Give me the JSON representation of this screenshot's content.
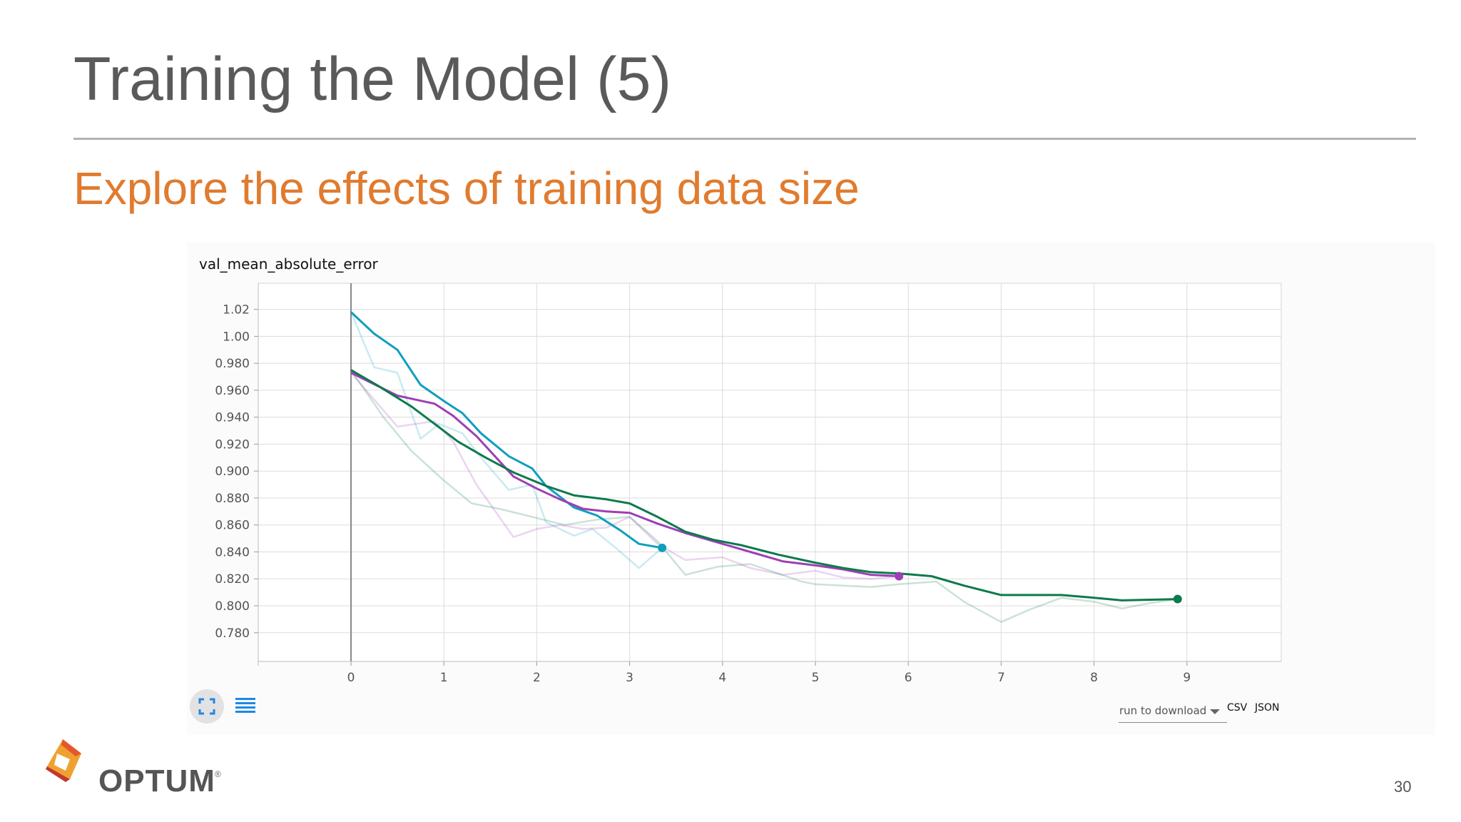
{
  "slide": {
    "title": "Training the Model (5)",
    "subtitle": "Explore the effects of training data size",
    "page_number": "30",
    "brand": "OPTUM",
    "registered_mark": "®"
  },
  "colors": {
    "title": "#5a5a5a",
    "subtitle": "#e07b2f",
    "rule": "#b3b3b3"
  },
  "controls": {
    "expand_icon": "fit-to-screen-icon",
    "lines_icon": "toggle-lines-icon",
    "run_select_label": "run to download",
    "csv_label": "CSV",
    "json_label": "JSON"
  },
  "chart_data": {
    "type": "line",
    "title": "val_mean_absolute_error",
    "xlabel": "",
    "ylabel": "",
    "xlim": [
      -1,
      10
    ],
    "ylim": [
      0.76,
      1.04
    ],
    "grid": true,
    "x_ticks": [
      0,
      1,
      2,
      3,
      4,
      5,
      6,
      7,
      8,
      9
    ],
    "y_ticks": [
      0.78,
      0.8,
      0.82,
      0.84,
      0.86,
      0.88,
      0.9,
      0.92,
      0.94,
      0.96,
      0.98,
      1.0,
      1.02
    ],
    "y_tick_labels": [
      "0.780",
      "0.800",
      "0.820",
      "0.840",
      "0.860",
      "0.880",
      "0.900",
      "0.920",
      "0.940",
      "0.960",
      "0.980",
      "1.00",
      "1.02"
    ],
    "series": [
      {
        "color": "#0e9fbf",
        "end_marker": true,
        "smoothed": {
          "x": [
            0,
            0.25,
            0.5,
            0.75,
            1.0,
            1.2,
            1.4,
            1.7,
            1.95,
            2.1,
            2.4,
            2.65,
            2.9,
            3.1,
            3.35
          ],
          "y": [
            1.018,
            1.002,
            0.99,
            0.964,
            0.952,
            0.943,
            0.928,
            0.911,
            0.902,
            0.889,
            0.873,
            0.867,
            0.856,
            0.846,
            0.843
          ]
        },
        "raw": {
          "x": [
            0,
            0.25,
            0.5,
            0.75,
            0.95,
            1.2,
            1.4,
            1.7,
            1.95,
            2.1,
            2.4,
            2.6,
            2.85,
            3.1,
            3.35
          ],
          "y": [
            1.018,
            0.977,
            0.973,
            0.924,
            0.935,
            0.928,
            0.91,
            0.886,
            0.89,
            0.862,
            0.852,
            0.857,
            0.843,
            0.828,
            0.843
          ]
        }
      },
      {
        "color": "#9e3fb5",
        "end_marker": true,
        "smoothed": {
          "x": [
            0,
            0.5,
            0.9,
            1.1,
            1.35,
            1.75,
            2.0,
            2.25,
            2.5,
            2.75,
            3.0,
            3.3,
            3.6,
            4.0,
            4.3,
            4.65,
            5.0,
            5.3,
            5.6,
            5.9
          ],
          "y": [
            0.973,
            0.956,
            0.95,
            0.941,
            0.926,
            0.896,
            0.887,
            0.879,
            0.872,
            0.87,
            0.869,
            0.861,
            0.854,
            0.846,
            0.84,
            0.833,
            0.83,
            0.827,
            0.823,
            0.822
          ]
        },
        "raw": {
          "x": [
            0,
            0.5,
            0.9,
            1.1,
            1.35,
            1.75,
            2.0,
            2.25,
            2.5,
            2.75,
            3.0,
            3.3,
            3.6,
            4.0,
            4.3,
            4.65,
            5.0,
            5.3,
            5.6,
            5.9
          ],
          "y": [
            0.973,
            0.933,
            0.937,
            0.922,
            0.89,
            0.851,
            0.857,
            0.86,
            0.857,
            0.858,
            0.866,
            0.846,
            0.834,
            0.836,
            0.828,
            0.823,
            0.826,
            0.821,
            0.82,
            0.822
          ]
        }
      },
      {
        "color": "#0c7a4c",
        "end_marker": true,
        "smoothed": {
          "x": [
            0,
            0.3,
            0.65,
            0.9,
            1.15,
            1.45,
            1.75,
            2.1,
            2.4,
            2.75,
            3.0,
            3.3,
            3.6,
            3.9,
            4.2,
            4.6,
            5.0,
            5.3,
            5.6,
            5.9,
            6.25,
            6.6,
            7.0,
            7.65,
            8.0,
            8.3,
            8.9
          ],
          "y": [
            0.975,
            0.963,
            0.948,
            0.935,
            0.922,
            0.91,
            0.899,
            0.889,
            0.882,
            0.879,
            0.876,
            0.866,
            0.855,
            0.849,
            0.845,
            0.838,
            0.832,
            0.828,
            0.825,
            0.824,
            0.822,
            0.815,
            0.808,
            0.808,
            0.806,
            0.804,
            0.805
          ]
        },
        "raw": {
          "x": [
            0,
            0.35,
            0.65,
            1.0,
            1.3,
            1.6,
            1.95,
            2.3,
            2.65,
            3.0,
            3.3,
            3.6,
            3.95,
            4.3,
            4.6,
            4.85,
            5.0,
            5.3,
            5.6,
            5.9,
            6.3,
            6.6,
            7.0,
            7.3,
            7.65,
            8.0,
            8.3,
            8.6,
            8.9
          ],
          "y": [
            0.975,
            0.94,
            0.915,
            0.893,
            0.876,
            0.872,
            0.866,
            0.86,
            0.864,
            0.866,
            0.848,
            0.823,
            0.829,
            0.831,
            0.824,
            0.818,
            0.816,
            0.815,
            0.814,
            0.816,
            0.818,
            0.803,
            0.788,
            0.797,
            0.806,
            0.803,
            0.798,
            0.802,
            0.805
          ]
        }
      }
    ]
  }
}
